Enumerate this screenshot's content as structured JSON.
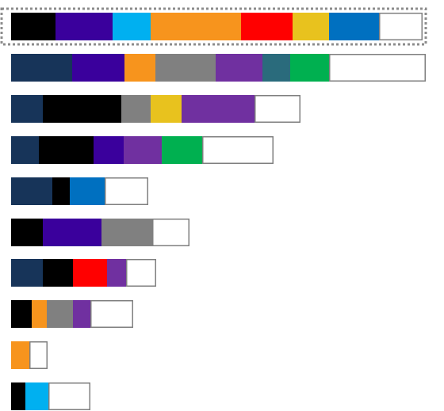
{
  "colors": {
    "navy": "#173459",
    "black": "#000000",
    "indigo": "#3a009c",
    "sky": "#00b0f0",
    "orange": "#f7941d",
    "red": "#ff0000",
    "gold": "#e8c21e",
    "blue": "#0070c0",
    "gray": "#808080",
    "purple": "#7030a0",
    "teal": "#2a6b7c",
    "green": "#00b050",
    "empty": "#ffffff",
    "empty_border": "#7f7f7f",
    "highlight": "#8c8c8c"
  },
  "chart_data": {
    "type": "bar",
    "orientation": "horizontal",
    "stacked": true,
    "grid": false,
    "legend": "none",
    "highlighted_row": 0,
    "rows": [
      {
        "segments": [
          {
            "color": "black",
            "value": 56
          },
          {
            "color": "indigo",
            "value": 72
          },
          {
            "color": "sky",
            "value": 48
          },
          {
            "color": "orange",
            "value": 114
          },
          {
            "color": "red",
            "value": 65
          },
          {
            "color": "gold",
            "value": 46
          },
          {
            "color": "blue",
            "value": 63
          },
          {
            "color": "empty",
            "value": 55
          }
        ]
      },
      {
        "segments": [
          {
            "color": "navy",
            "value": 77
          },
          {
            "color": "indigo",
            "value": 66
          },
          {
            "color": "orange",
            "value": 39
          },
          {
            "color": "gray",
            "value": 76
          },
          {
            "color": "purple",
            "value": 59
          },
          {
            "color": "teal",
            "value": 35
          },
          {
            "color": "green",
            "value": 49
          },
          {
            "color": "empty",
            "value": 122
          }
        ]
      },
      {
        "segments": [
          {
            "color": "navy",
            "value": 40
          },
          {
            "color": "black",
            "value": 99
          },
          {
            "color": "gray",
            "value": 37
          },
          {
            "color": "gold",
            "value": 39
          },
          {
            "color": "purple",
            "value": 92
          },
          {
            "color": "empty",
            "value": 58
          }
        ]
      },
      {
        "segments": [
          {
            "color": "navy",
            "value": 35
          },
          {
            "color": "black",
            "value": 69
          },
          {
            "color": "indigo",
            "value": 38
          },
          {
            "color": "purple",
            "value": 48
          },
          {
            "color": "green",
            "value": 51
          },
          {
            "color": "empty",
            "value": 90
          }
        ]
      },
      {
        "segments": [
          {
            "color": "navy",
            "value": 52
          },
          {
            "color": "black",
            "value": 22
          },
          {
            "color": "blue",
            "value": 44
          },
          {
            "color": "empty",
            "value": 55
          }
        ]
      },
      {
        "segments": [
          {
            "color": "black",
            "value": 40
          },
          {
            "color": "indigo",
            "value": 74
          },
          {
            "color": "gray",
            "value": 64
          },
          {
            "color": "empty",
            "value": 47
          }
        ]
      },
      {
        "segments": [
          {
            "color": "navy",
            "value": 40
          },
          {
            "color": "black",
            "value": 38
          },
          {
            "color": "red",
            "value": 43
          },
          {
            "color": "purple",
            "value": 24
          },
          {
            "color": "empty",
            "value": 38
          }
        ]
      },
      {
        "segments": [
          {
            "color": "black",
            "value": 26
          },
          {
            "color": "orange",
            "value": 19
          },
          {
            "color": "gray",
            "value": 33
          },
          {
            "color": "purple",
            "value": 22
          },
          {
            "color": "empty",
            "value": 54
          }
        ]
      },
      {
        "segments": [
          {
            "color": "orange",
            "value": 23
          },
          {
            "color": "empty",
            "value": 23
          }
        ]
      },
      {
        "segments": [
          {
            "color": "black",
            "value": 18
          },
          {
            "color": "sky",
            "value": 29
          },
          {
            "color": "empty",
            "value": 53
          }
        ]
      }
    ]
  }
}
